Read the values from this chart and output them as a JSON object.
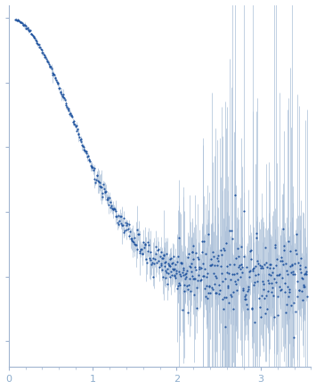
{
  "xlim": [
    0,
    3.6
  ],
  "ylim": [
    -0.35,
    1.05
  ],
  "dot_color": "#2255a0",
  "error_color": "#aabfd8",
  "background_color": "#ffffff",
  "axis_color": "#a0b4d0",
  "tick_color": "#a0b4d0",
  "label_color": "#8caccc",
  "xlabel_ticks": [
    0,
    1,
    2,
    3
  ],
  "dot_size": 2.5,
  "linewidth_err": 0.5,
  "seed": 12345
}
